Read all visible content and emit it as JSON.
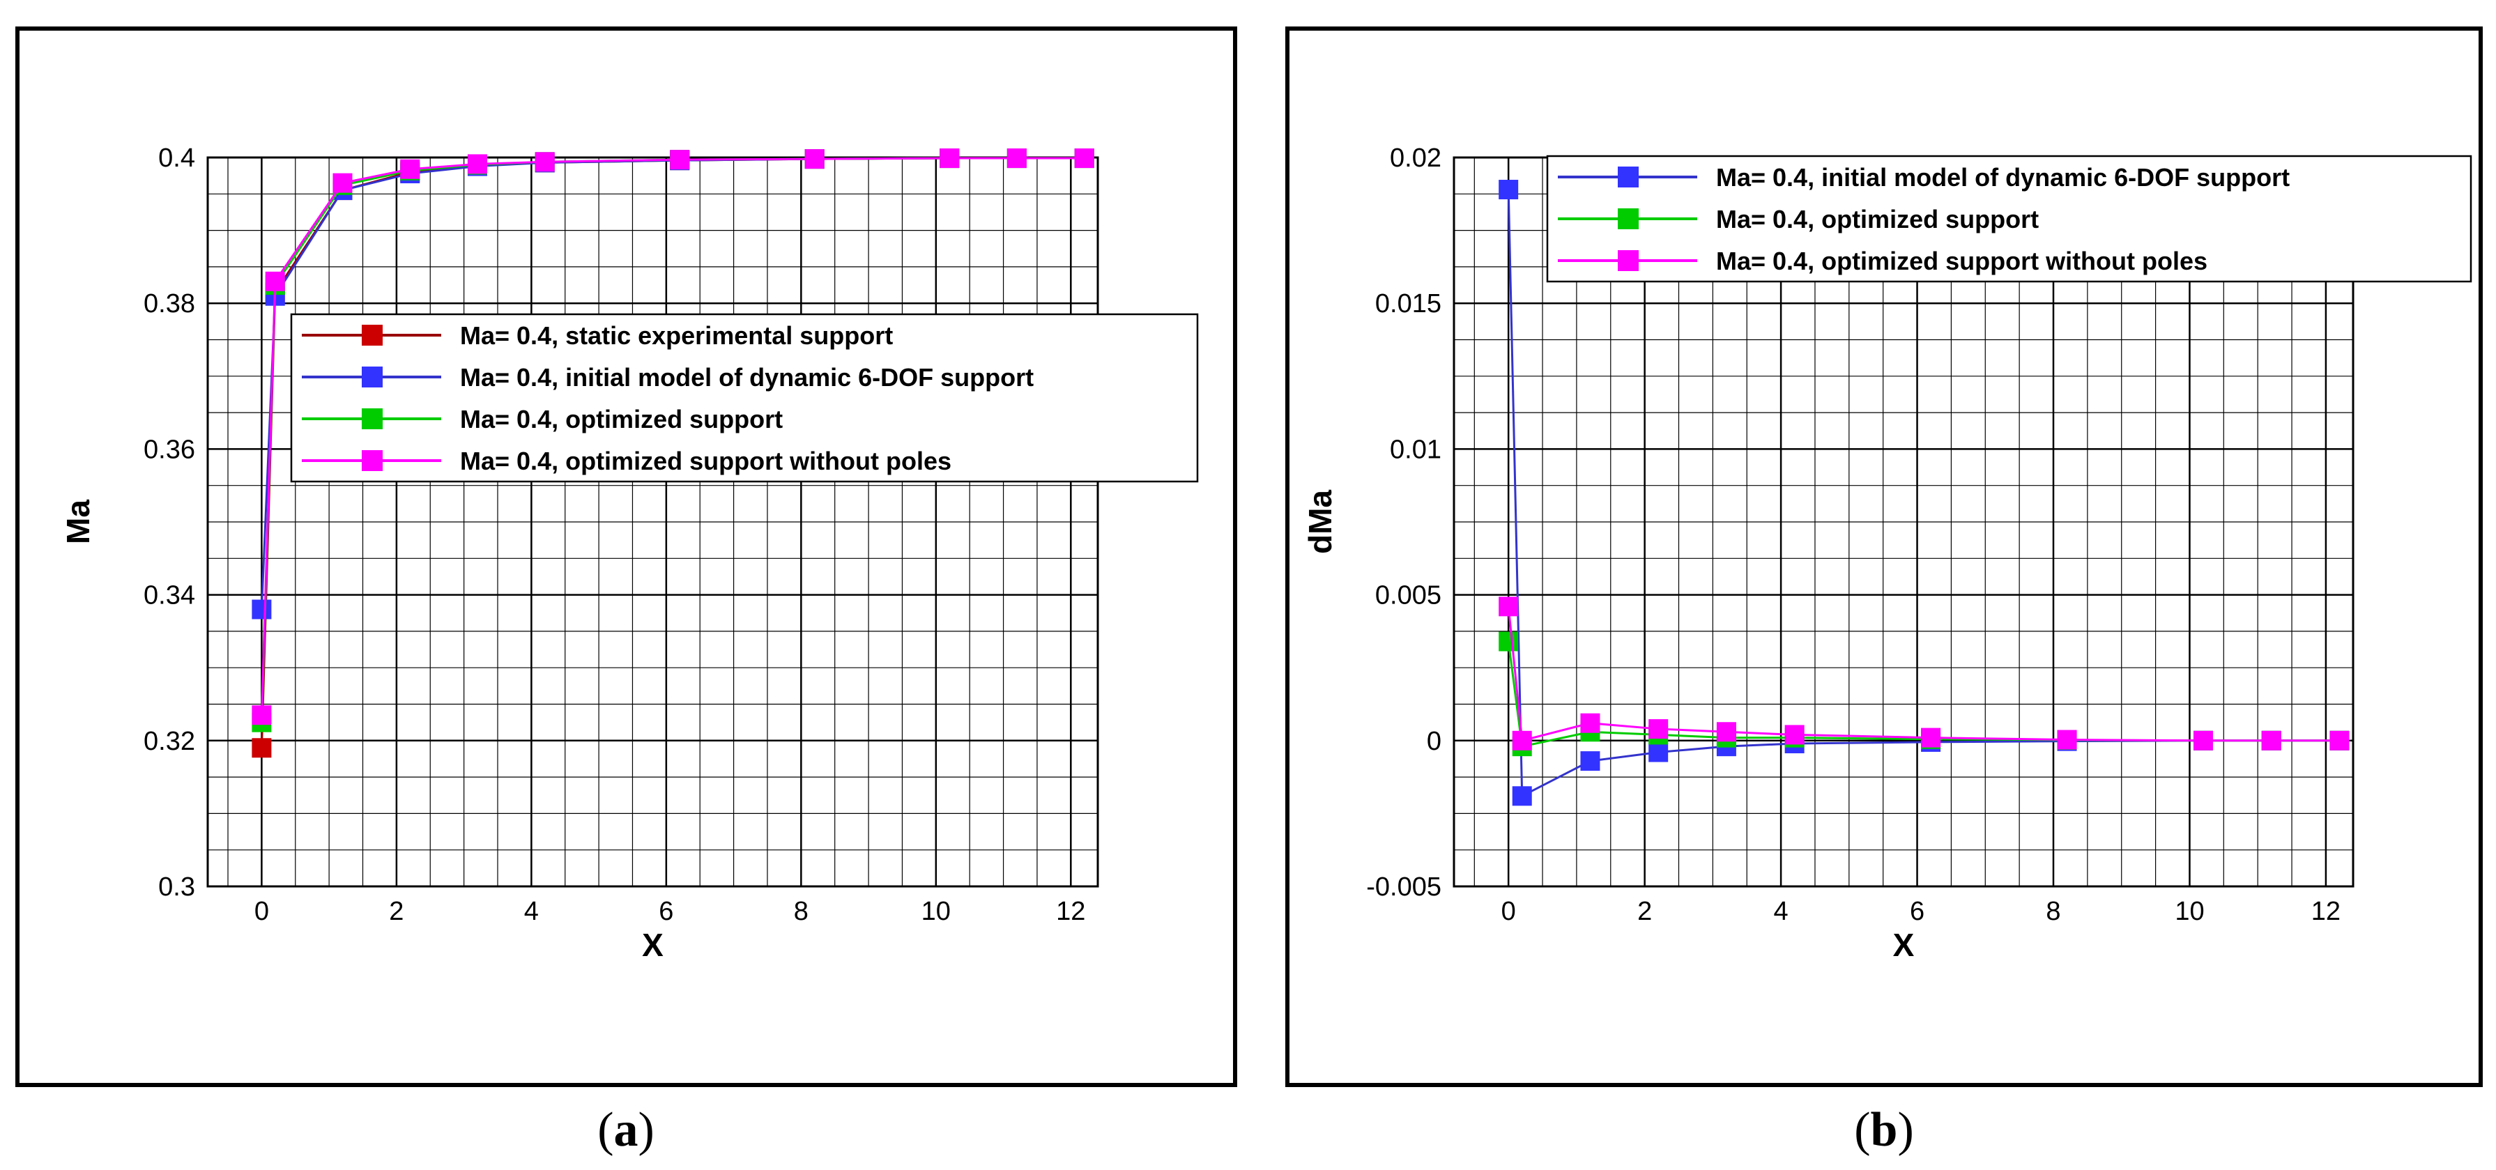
{
  "captions": {
    "a_open": "(",
    "a_letter": "a",
    "a_close": ")",
    "b_open": "(",
    "b_letter": "b",
    "b_close": ")"
  },
  "colors": {
    "static": "#cc0000",
    "initial": "#3333ff",
    "optimized": "#00cc00",
    "no_poles": "#ff00ff",
    "initial_line": "#3333cc",
    "static_line": "#990000"
  },
  "chart_data": [
    {
      "type": "line",
      "panel": "a",
      "xlabel": "X",
      "ylabel": "Ma",
      "xlim": [
        -0.8,
        12.4
      ],
      "ylim": [
        0.3,
        0.4
      ],
      "xticks": [
        0,
        2,
        4,
        6,
        8,
        10,
        12
      ],
      "yticks": [
        0.3,
        0.32,
        0.34,
        0.36,
        0.38,
        0.4
      ],
      "ytick_labels": [
        "0.3",
        "0.32",
        "0.34",
        "0.36",
        "0.38",
        "0.4"
      ],
      "grid": true,
      "legend_position": "center-right",
      "series": [
        {
          "name": "Ma= 0.4, static experimental support",
          "color_key": "static",
          "line_key": "static_line",
          "x": [
            0,
            0.2,
            1.2,
            2.2,
            3.2,
            4.2,
            6.2,
            8.2,
            10.2,
            11.2,
            12.2
          ],
          "y": [
            0.319,
            0.3815,
            0.3955,
            0.398,
            0.399,
            0.3993,
            0.3996,
            0.3998,
            0.3999,
            0.3999,
            0.3999
          ]
        },
        {
          "name": "Ma= 0.4, initial model of dynamic 6-DOF support",
          "color_key": "initial",
          "line_key": "initial_line",
          "x": [
            0,
            0.2,
            1.2,
            2.2,
            3.2,
            4.2,
            6.2,
            8.2,
            10.2,
            11.2,
            12.2
          ],
          "y": [
            0.338,
            0.381,
            0.3955,
            0.3978,
            0.3988,
            0.3993,
            0.3996,
            0.3998,
            0.3999,
            0.3999,
            0.3999
          ]
        },
        {
          "name": "Ma= 0.4, optimized support",
          "color_key": "optimized",
          "line_key": "optimized",
          "x": [
            0,
            0.2,
            1.2,
            2.2,
            3.2,
            4.2,
            6.2,
            8.2,
            10.2,
            11.2,
            12.2
          ],
          "y": [
            0.3225,
            0.3825,
            0.3962,
            0.3982,
            0.399,
            0.3994,
            0.3997,
            0.3998,
            0.3999,
            0.3999,
            0.3999
          ]
        },
        {
          "name": "Ma= 0.4, optimized support without poles",
          "color_key": "no_poles",
          "line_key": "no_poles",
          "x": [
            0,
            0.2,
            1.2,
            2.2,
            3.2,
            4.2,
            6.2,
            8.2,
            10.2,
            11.2,
            12.2
          ],
          "y": [
            0.3235,
            0.383,
            0.3965,
            0.3984,
            0.3991,
            0.3994,
            0.3997,
            0.3998,
            0.3999,
            0.3999,
            0.3999
          ]
        }
      ]
    },
    {
      "type": "line",
      "panel": "b",
      "xlabel": "X",
      "ylabel": "dMa",
      "xlim": [
        -0.8,
        12.4
      ],
      "ylim": [
        -0.005,
        0.02
      ],
      "xticks": [
        0,
        2,
        4,
        6,
        8,
        10,
        12
      ],
      "yticks": [
        -0.005,
        0,
        0.005,
        0.01,
        0.015,
        0.02
      ],
      "ytick_labels": [
        "-0.005",
        "0",
        "0.005",
        "0.01",
        "0.015",
        "0.02"
      ],
      "grid": true,
      "legend_position": "top-right",
      "series": [
        {
          "name": "Ma= 0.4, initial model of dynamic 6-DOF support",
          "color_key": "initial",
          "line_key": "initial_line",
          "x": [
            0,
            0.2,
            1.2,
            2.2,
            3.2,
            4.2,
            6.2,
            8.2,
            10.2,
            11.2,
            12.2
          ],
          "y": [
            0.0189,
            -0.0019,
            -0.0007,
            -0.0004,
            -0.0002,
            -0.0001,
            -5e-05,
            -2e-05,
            0,
            0,
            0
          ]
        },
        {
          "name": "Ma= 0.4, optimized support",
          "color_key": "optimized",
          "line_key": "optimized",
          "x": [
            0,
            0.2,
            1.2,
            2.2,
            3.2,
            4.2,
            6.2,
            8.2,
            10.2,
            11.2,
            12.2
          ],
          "y": [
            0.0034,
            -0.0002,
            0.0003,
            0.0002,
            0.0001,
            0.0001,
            5e-05,
            2e-05,
            0,
            0,
            0
          ]
        },
        {
          "name": "Ma= 0.4, optimized support without poles",
          "color_key": "no_poles",
          "line_key": "no_poles",
          "x": [
            0,
            0.2,
            1.2,
            2.2,
            3.2,
            4.2,
            6.2,
            8.2,
            10.2,
            11.2,
            12.2
          ],
          "y": [
            0.0046,
            0,
            0.0006,
            0.0004,
            0.0003,
            0.0002,
            0.0001,
            3e-05,
            0,
            0,
            0
          ]
        }
      ]
    }
  ]
}
